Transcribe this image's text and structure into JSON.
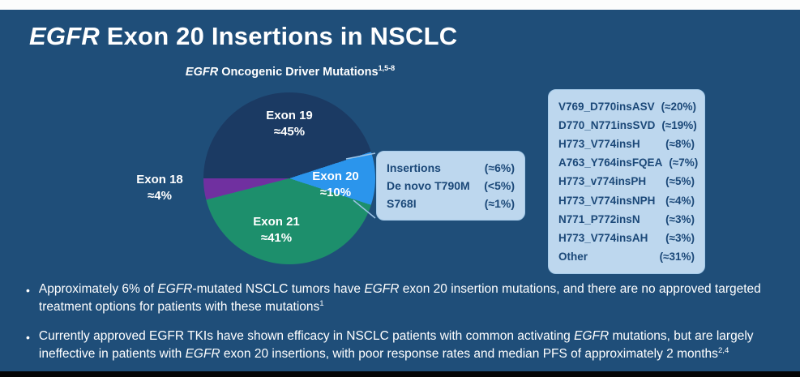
{
  "slide": {
    "title_segments": [
      {
        "t": "EGFR",
        "i": true
      },
      {
        "t": " Exon 20 Insertions in NSCLC"
      }
    ],
    "subtitle_segments": [
      {
        "t": "EGFR",
        "i": true
      },
      {
        "t": " Oncogenic Driver Mutations"
      },
      {
        "t": "1,5-8",
        "sup": true
      }
    ],
    "bullet_char": "•"
  },
  "chart_data": {
    "type": "pie",
    "title": "EGFR Oncogenic Driver Mutations",
    "title_superscript": "1,5-8",
    "start_angle_deg": 270,
    "legend_position": "labels-on-slices",
    "slices": [
      {
        "label": "Exon 19",
        "value": 45,
        "approx": "≈45%",
        "color": "#1b3a63"
      },
      {
        "label": "Exon 20",
        "value": 10,
        "approx": "≈10%",
        "color": "#2b95ec"
      },
      {
        "label": "Exon 21",
        "value": 41,
        "approx": "≈41%",
        "color": "#1d8f6c"
      },
      {
        "label": "Exon 18",
        "value": 4,
        "approx": "≈4%",
        "color": "#7030a0"
      }
    ],
    "exon20_breakdown": {
      "summary_rows": [
        {
          "label": "Insertions",
          "value": "(≈6%)"
        },
        {
          "label": "De novo T790M",
          "value": "(<5%)"
        },
        {
          "label": "S768I",
          "value": "(≈1%)"
        }
      ],
      "insertion_variants": [
        {
          "label": "V769_D770insASV",
          "value": "(≈20%)"
        },
        {
          "label": "D770_N771insSVD",
          "value": "(≈19%)"
        },
        {
          "label": "H773_V774insH",
          "value": "(≈8%)"
        },
        {
          "label": "A763_Y764insFQEA",
          "value": "(≈7%)"
        },
        {
          "label": "H773_v774insPH",
          "value": "(≈5%)"
        },
        {
          "label": "H773_V774insNPH",
          "value": "(≈4%)"
        },
        {
          "label": "N771_P772insN",
          "value": "(≈3%)"
        },
        {
          "label": "H773_V774insAH",
          "value": "(≈3%)"
        },
        {
          "label": "Other",
          "value": "(≈31%)"
        }
      ]
    }
  },
  "bullets": [
    {
      "segments": [
        {
          "t": "Approximately 6% of "
        },
        {
          "t": "EGFR",
          "i": true
        },
        {
          "t": "-mutated NSCLC tumors have "
        },
        {
          "t": "EGFR",
          "i": true
        },
        {
          "t": " exon 20 insertion mutations, and there are no approved targeted treatment options for patients with these mutations"
        },
        {
          "t": "1",
          "sup": true
        }
      ]
    },
    {
      "segments": [
        {
          "t": "Currently approved EGFR TKIs have shown efficacy in NSCLC patients with common activating "
        },
        {
          "t": "EGFR",
          "i": true
        },
        {
          "t": " mutations, but are largely ineffective in patients with "
        },
        {
          "t": "EGFR",
          "i": true
        },
        {
          "t": " exon 20 insertions, with poor response rates and median PFS of approximately 2 months"
        },
        {
          "t": "2,4",
          "sup": true
        }
      ]
    }
  ],
  "colors": {
    "background": "#1f4e79",
    "callout_bg": "#bdd7ee",
    "callout_text": "#1b4878",
    "connector_line": "#9dc3e6",
    "text": "#ffffff"
  }
}
